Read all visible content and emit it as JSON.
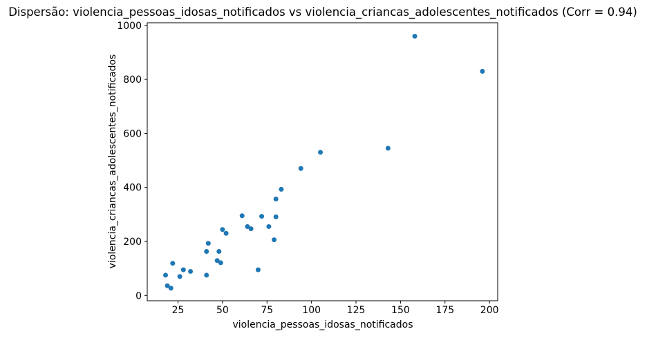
{
  "chart_data": {
    "type": "scatter",
    "title": "Dispersão: violencia_pessoas_idosas_notificados vs violencia_criancas_adolescentes_notificados (Corr = 0.94)",
    "xlabel": "violencia_pessoas_idosas_notificados",
    "ylabel": "violencia_criancas_adolescentes_notificados",
    "correlation": 0.94,
    "marker_color": "#1f77b4",
    "marker_radius": 3.5,
    "axis_color": "#000000",
    "grid": false,
    "legend": null,
    "xticks": [
      25,
      50,
      75,
      100,
      125,
      150,
      175,
      200
    ],
    "yticks": [
      0,
      200,
      400,
      600,
      800,
      1000
    ],
    "xlim": [
      7.7,
      204.6
    ],
    "ylim": [
      -19.7,
      1009.7
    ],
    "points": [
      [
        18,
        75
      ],
      [
        19,
        36
      ],
      [
        21,
        27
      ],
      [
        22,
        119
      ],
      [
        26,
        70
      ],
      [
        28,
        95
      ],
      [
        32,
        89
      ],
      [
        41,
        75
      ],
      [
        41,
        163
      ],
      [
        42,
        193
      ],
      [
        47,
        129
      ],
      [
        48,
        163
      ],
      [
        49,
        121
      ],
      [
        50,
        244
      ],
      [
        52,
        230
      ],
      [
        61,
        295
      ],
      [
        64,
        255
      ],
      [
        66,
        247
      ],
      [
        70,
        95
      ],
      [
        72,
        293
      ],
      [
        76,
        255
      ],
      [
        79,
        206
      ],
      [
        80,
        291
      ],
      [
        80,
        357
      ],
      [
        83,
        393
      ],
      [
        94,
        470
      ],
      [
        105,
        530
      ],
      [
        143,
        545
      ],
      [
        158,
        960
      ],
      [
        196,
        830
      ]
    ]
  }
}
